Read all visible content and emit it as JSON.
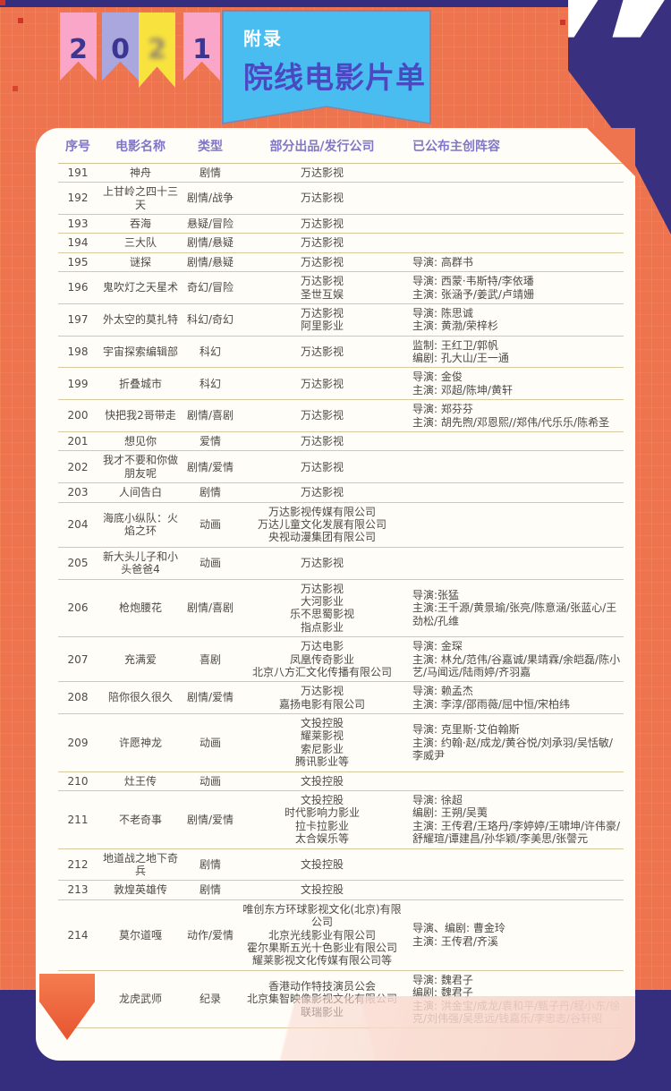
{
  "colors": {
    "background_indigo": "#352e7e",
    "band_orange": "#ee7450",
    "banner_blue": "#49bdf0",
    "flag_pink": "#f9a6c9",
    "flag_lavender": "#aaa6de",
    "flag_yellow": "#f8e33e",
    "header_text_purple": "#8177c9",
    "banner_title_purple": "#4a49c2",
    "row_line_tan": "#d8caa0"
  },
  "header": {
    "year_digits": [
      "2",
      "0",
      "2",
      "1"
    ],
    "banner_small": "附录",
    "banner_title": "院线电影片单",
    "quote_mark": "”"
  },
  "table": {
    "columns": [
      "序号",
      "电影名称",
      "类型",
      "部分出品/发行公司",
      "已公布主创阵容"
    ],
    "rows": [
      {
        "no": "191",
        "title": "神舟",
        "genre": "剧情",
        "companies": [
          "万达影视"
        ],
        "credits": []
      },
      {
        "no": "192",
        "title": "上甘岭之四十三天",
        "genre": "剧情/战争",
        "companies": [
          "万达影视"
        ],
        "credits": []
      },
      {
        "no": "193",
        "title": "吞海",
        "genre": "悬疑/冒险",
        "companies": [
          "万达影视"
        ],
        "credits": []
      },
      {
        "no": "194",
        "title": "三大队",
        "genre": "剧情/悬疑",
        "companies": [
          "万达影视"
        ],
        "credits": []
      },
      {
        "no": "195",
        "title": "谜探",
        "genre": "剧情/悬疑",
        "companies": [
          "万达影视"
        ],
        "credits": [
          "导演: 高群书"
        ]
      },
      {
        "no": "196",
        "title": "鬼吹灯之天星术",
        "genre": "奇幻/冒险",
        "companies": [
          "万达影视",
          "圣世互娱"
        ],
        "credits": [
          "导演: 西蒙·韦斯特/李依璠",
          "主演: 张涵予/姜武/卢靖姗"
        ]
      },
      {
        "no": "197",
        "title": "外太空的莫扎特",
        "genre": "科幻/奇幻",
        "companies": [
          "万达影视",
          "阿里影业"
        ],
        "credits": [
          "导演: 陈思诚",
          "主演: 黄渤/荣梓杉"
        ]
      },
      {
        "no": "198",
        "title": "宇宙探索编辑部",
        "genre": "科幻",
        "companies": [
          "万达影视"
        ],
        "credits": [
          "监制: 王红卫/郭帆",
          "编剧: 孔大山/王一通"
        ]
      },
      {
        "no": "199",
        "title": "折叠城市",
        "genre": "科幻",
        "companies": [
          "万达影视"
        ],
        "credits": [
          "导演: 金俊",
          "主演: 邓超/陈坤/黄轩"
        ]
      },
      {
        "no": "200",
        "title": "快把我2哥带走",
        "genre": "剧情/喜剧",
        "companies": [
          "万达影视"
        ],
        "credits": [
          "导演: 郑芬芬",
          "主演: 胡先煦/邓恩熙//郑伟/代乐乐/陈希圣"
        ]
      },
      {
        "no": "201",
        "title": "想见你",
        "genre": "爱情",
        "companies": [
          "万达影视"
        ],
        "credits": []
      },
      {
        "no": "202",
        "title": "我才不要和你做朋友呢",
        "genre": "剧情/爱情",
        "companies": [
          "万达影视"
        ],
        "credits": []
      },
      {
        "no": "203",
        "title": "人间告白",
        "genre": "剧情",
        "companies": [
          "万达影视"
        ],
        "credits": []
      },
      {
        "no": "204",
        "title": "海底小纵队：火焰之环",
        "genre": "动画",
        "companies": [
          "万达影视传媒有限公司",
          "万达儿童文化发展有限公司",
          "央视动漫集团有限公司"
        ],
        "credits": []
      },
      {
        "no": "205",
        "title": "新大头儿子和小头爸爸4",
        "genre": "动画",
        "companies": [
          "万达影视"
        ],
        "credits": []
      },
      {
        "no": "206",
        "title": "枪炮腰花",
        "genre": "剧情/喜剧",
        "companies": [
          "万达影视",
          "大河影业",
          "乐不思蜀影视",
          "指点影业"
        ],
        "credits": [
          "导演:张猛",
          "主演:王千源/黄景瑜/张亮/陈意涵/张蓝心/王劲松/孔维"
        ]
      },
      {
        "no": "207",
        "title": "充满爱",
        "genre": "喜剧",
        "companies": [
          "万达电影",
          "凤凰传奇影业",
          "北京八方汇文化传播有限公司"
        ],
        "credits": [
          "导演: 金琛",
          "主演: 林允/范伟/谷嘉诚/果靖霖/余皑磊/陈小艺/马闻远/陆雨婷/齐羽嘉"
        ]
      },
      {
        "no": "208",
        "title": "陪你很久很久",
        "genre": "剧情/爱情",
        "companies": [
          "万达影视",
          "嘉扬电影有限公司"
        ],
        "credits": [
          "导演: 赖孟杰",
          "主演: 李淳/邵雨薇/屈中恒/宋柏纬"
        ]
      },
      {
        "no": "209",
        "title": "许愿神龙",
        "genre": "动画",
        "companies": [
          "文投控股",
          "耀莱影视",
          "索尼影业",
          "腾讯影业等"
        ],
        "credits": [
          "导演: 克里斯·艾伯翰斯",
          "主演: 约翰·赵/成龙/黄谷悦/刘承羽/吴恬敏/李威尹"
        ]
      },
      {
        "no": "210",
        "title": "灶王传",
        "genre": "动画",
        "companies": [
          "文投控股"
        ],
        "credits": []
      },
      {
        "no": "211",
        "title": "不老奇事",
        "genre": "剧情/爱情",
        "companies": [
          "文投控股",
          "时代影响力影业",
          "拉卡拉影业",
          "太合娱乐等"
        ],
        "credits": [
          "导演: 徐超",
          "编剧: 王朔/吴荑",
          "主演: 王传君/王珞丹/李婷婷/王啸坤/许伟豪/舒耀瑄/谭建昌/孙华颖/李美思/张謦元"
        ]
      },
      {
        "no": "212",
        "title": "地道战之地下奇兵",
        "genre": "剧情",
        "companies": [
          "文投控股"
        ],
        "credits": []
      },
      {
        "no": "213",
        "title": "敦煌英雄传",
        "genre": "剧情",
        "companies": [
          "文投控股"
        ],
        "credits": []
      },
      {
        "no": "214",
        "title": "莫尔道嘎",
        "genre": "动作/爱情",
        "companies": [
          "唯创东方环球影视文化(北京)有限公司",
          "北京光线影业有限公司",
          "霍尔果斯五光十色影业有限公司",
          "耀莱影视文化传媒有限公司等"
        ],
        "credits": [
          "导演、编剧: 曹金玲",
          "主演: 王传君/齐溪"
        ]
      },
      {
        "no": "215",
        "title": "龙虎武师",
        "genre": "纪录",
        "companies": [
          "香港动作特技演员公会",
          "北京集智映像影视文化有限公司",
          "联瑞影业"
        ],
        "credits": [
          "导演: 魏君子",
          "编剧: 魏君子",
          "主演: 洪金宝/成龙/袁和平/甄子丹/程小东/徐克/刘伟强/吴思远/钱嘉乐/李忠志/谷轩昭"
        ]
      }
    ]
  }
}
